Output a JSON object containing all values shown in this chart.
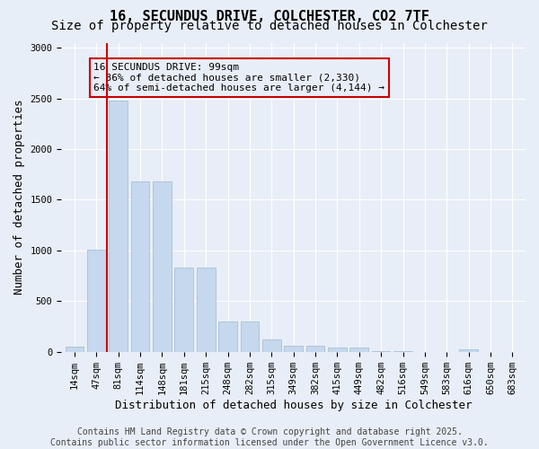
{
  "title": "16, SECUNDUS DRIVE, COLCHESTER, CO2 7TF",
  "subtitle": "Size of property relative to detached houses in Colchester",
  "xlabel": "Distribution of detached houses by size in Colchester",
  "ylabel": "Number of detached properties",
  "bar_values": [
    50,
    1005,
    2480,
    1680,
    1680,
    830,
    830,
    300,
    300,
    120,
    60,
    60,
    40,
    40,
    10,
    10,
    0,
    0,
    20,
    0,
    0
  ],
  "categories": [
    "14sqm",
    "47sqm",
    "81sqm",
    "114sqm",
    "148sqm",
    "181sqm",
    "215sqm",
    "248sqm",
    "282sqm",
    "315sqm",
    "349sqm",
    "382sqm",
    "415sqm",
    "449sqm",
    "482sqm",
    "516sqm",
    "549sqm",
    "583sqm",
    "616sqm",
    "650sqm",
    "683sqm"
  ],
  "bar_color": "#c5d8ed",
  "bar_edgecolor": "#a0b8d0",
  "background_color": "#e8eef7",
  "grid_color": "#ffffff",
  "vline_color": "#cc0000",
  "annotation_box_text": "16 SECUNDUS DRIVE: 99sqm\n← 36% of detached houses are smaller (2,330)\n64% of semi-detached houses are larger (4,144) →",
  "ylim": [
    0,
    3050
  ],
  "yticks": [
    0,
    500,
    1000,
    1500,
    2000,
    2500,
    3000
  ],
  "footnote": "Contains HM Land Registry data © Crown copyright and database right 2025.\nContains public sector information licensed under the Open Government Licence v3.0.",
  "title_fontsize": 11,
  "subtitle_fontsize": 10,
  "xlabel_fontsize": 9,
  "ylabel_fontsize": 9,
  "tick_fontsize": 7.5,
  "annot_fontsize": 8,
  "footnote_fontsize": 7
}
